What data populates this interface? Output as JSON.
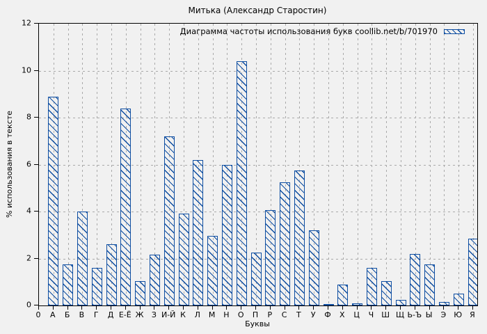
{
  "colors": {
    "background": "#f1f1f1",
    "bar": "#0d4da1",
    "grid": "#a9a9a9",
    "axis": "#000000",
    "text": "#000000"
  },
  "chart_data": {
    "type": "bar",
    "title": "Митька (Александр Старостин)",
    "legend": "Диаграмма частоты использования букв coollib.net/b/701970",
    "legend_position": "top-right",
    "xlabel": "Буквы",
    "ylabel": "% использования в тексте",
    "x_origin_label": "0",
    "categories": [
      "А",
      "Б",
      "В",
      "Г",
      "Д",
      "Е-Ё",
      "Ж",
      "З",
      "И-Й",
      "К",
      "Л",
      "М",
      "Н",
      "О",
      "П",
      "Р",
      "С",
      "Т",
      "У",
      "Ф",
      "Х",
      "Ц",
      "Ч",
      "Ш",
      "Щ",
      "Ь-Ъ",
      "Ы",
      "Э",
      "Ю",
      "Я"
    ],
    "values": [
      8.9,
      1.75,
      4.0,
      1.6,
      2.6,
      8.4,
      1.05,
      2.15,
      7.2,
      3.9,
      6.2,
      2.95,
      6.0,
      10.4,
      2.25,
      4.05,
      5.25,
      5.75,
      3.2,
      0.07,
      0.9,
      0.1,
      1.6,
      1.05,
      0.25,
      2.2,
      1.75,
      0.15,
      0.5,
      2.85
    ],
    "ylim": [
      0,
      12
    ],
    "yticks": [
      0,
      2,
      4,
      6,
      8,
      10,
      12
    ],
    "grid": true,
    "hatch": "diagonal-backslash"
  }
}
